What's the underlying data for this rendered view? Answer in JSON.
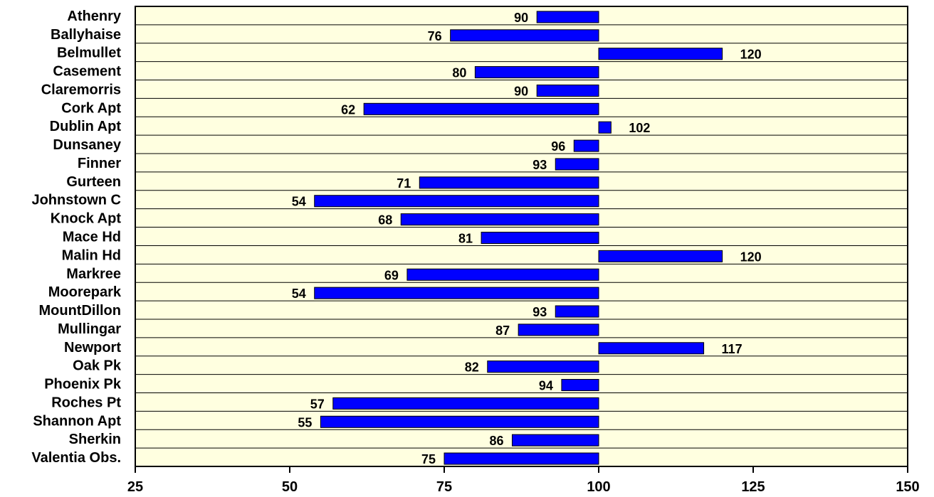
{
  "chart_data": {
    "type": "bar",
    "orientation": "horizontal",
    "baseline": 100,
    "categories": [
      "Athenry",
      "Ballyhaise",
      "Belmullet",
      "Casement",
      "Claremorris",
      "Cork Apt",
      "Dublin Apt",
      "Dunsaney",
      "Finner",
      "Gurteen",
      "Johnstown C",
      "Knock Apt",
      "Mace Hd",
      "Malin Hd",
      "Markree",
      "Moorepark",
      "MountDillon",
      "Mullingar",
      "Newport",
      "Oak Pk",
      "Phoenix Pk",
      "Roches Pt",
      "Shannon Apt",
      "Sherkin",
      "Valentia Obs."
    ],
    "values": [
      90,
      76,
      120,
      80,
      90,
      62,
      102,
      96,
      93,
      71,
      54,
      68,
      81,
      120,
      69,
      54,
      93,
      87,
      117,
      82,
      94,
      57,
      55,
      86,
      75
    ],
    "xlim": [
      25,
      150
    ],
    "xticks": [
      25,
      50,
      75,
      100,
      125,
      150
    ],
    "title": "",
    "xlabel": "",
    "ylabel": "",
    "grid": "horizontal",
    "colors": {
      "bar": "#0000ff",
      "plot_background": "#ffffe0",
      "grid": "#000000"
    }
  }
}
